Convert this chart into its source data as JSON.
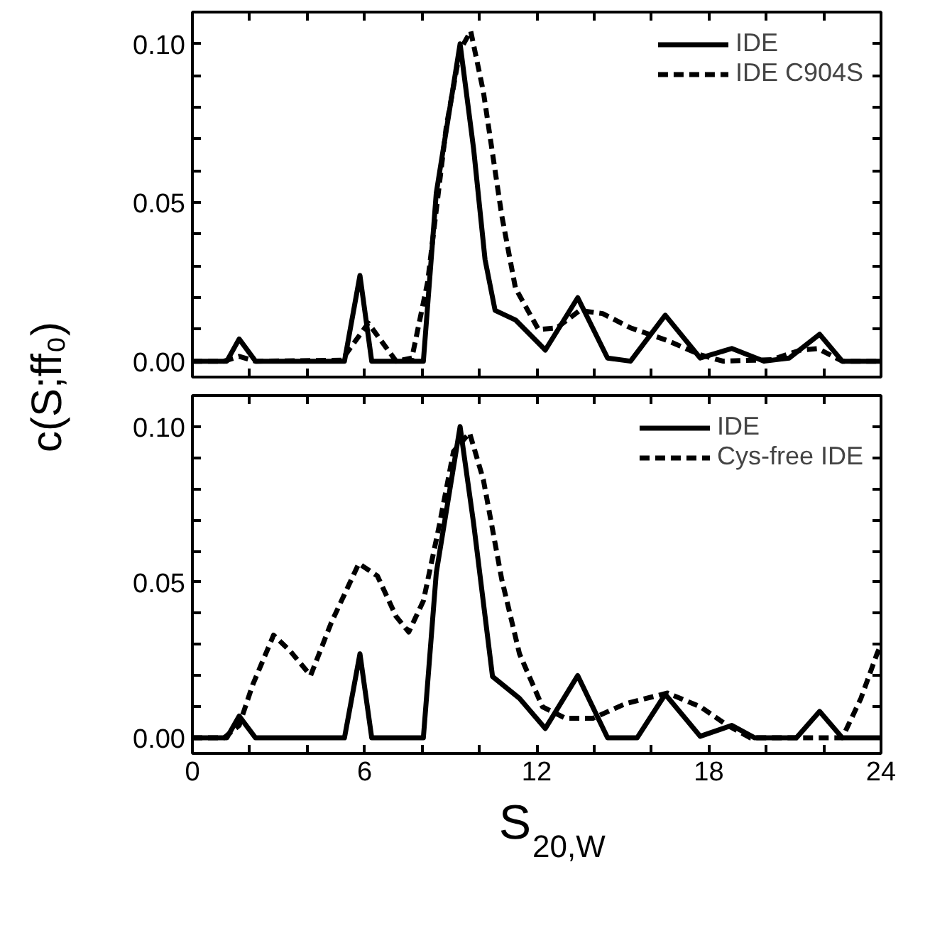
{
  "chart_data": [
    {
      "type": "line",
      "ylabel": "c(S;ff₀)",
      "xlim": [
        0,
        24
      ],
      "ylim": [
        -0.005,
        0.11
      ],
      "xticks": [
        0,
        {
          "value": 2,
          "label": null
        },
        {
          "value": 4,
          "label": null
        },
        6,
        {
          "value": 8,
          "label": null
        },
        {
          "value": 10,
          "label": null
        },
        12,
        {
          "value": 14,
          "label": null
        },
        {
          "value": 16,
          "label": null
        },
        18,
        {
          "value": 20,
          "label": null
        },
        {
          "value": 22,
          "label": null
        },
        24
      ],
      "yticks": [
        {
          "value": 0,
          "label": "0.00"
        },
        {
          "value": 0.01,
          "label": null
        },
        {
          "value": 0.02,
          "label": null
        },
        {
          "value": 0.03,
          "label": null
        },
        {
          "value": 0.04,
          "label": null
        },
        {
          "value": 0.05,
          "label": "0.05"
        },
        {
          "value": 0.06,
          "label": null
        },
        {
          "value": 0.07,
          "label": null
        },
        {
          "value": 0.08,
          "label": null
        },
        {
          "value": 0.09,
          "label": null
        },
        {
          "value": 0.1,
          "label": "0.10"
        }
      ],
      "tick_labels": "y",
      "legend": "top right",
      "grid": false,
      "series": [
        {
          "name": "IDE",
          "color": "#000000",
          "line_style": "solid",
          "x": [
            0,
            1.2,
            1.63,
            2.2,
            5.3,
            5.84,
            6.25,
            8.05,
            8.5,
            9.33,
            9.8,
            10.2,
            10.55,
            11.26,
            12.3,
            13.43,
            14.47,
            15.27,
            16.48,
            17.7,
            18.8,
            19.93,
            20.8,
            21.86,
            22.65,
            24
          ],
          "values": [
            0,
            0,
            0.007,
            0,
            0,
            0.027,
            0,
            0,
            0.053,
            0.1,
            0.067,
            0.032,
            0.016,
            0.013,
            0.0035,
            0.02,
            0.001,
            0,
            0.0145,
            0.001,
            0.004,
            0,
            0.001,
            0.0085,
            0,
            0
          ]
        },
        {
          "name": "IDE C904S",
          "color": "#000000",
          "line_style": "dashed",
          "x": [
            0,
            1.1,
            1.63,
            2.2,
            5.2,
            6.13,
            7.1,
            7.65,
            8.2,
            8.85,
            9.33,
            9.7,
            10.14,
            10.78,
            11.26,
            12.06,
            12.7,
            13.5,
            14.3,
            15.27,
            16.56,
            17.7,
            18.5,
            20.2,
            21.2,
            21.8,
            22.65,
            24
          ],
          "values": [
            0,
            0,
            0.0015,
            0,
            0.0003,
            0.012,
            0,
            0.001,
            0.025,
            0.074,
            0.098,
            0.104,
            0.085,
            0.046,
            0.023,
            0.01,
            0.0105,
            0.016,
            0.015,
            0.0105,
            0.0065,
            0.002,
            0,
            0.0005,
            0.0035,
            0.004,
            0,
            0
          ]
        }
      ]
    },
    {
      "type": "line",
      "xlabel": "S$_{20,W}$",
      "xlim": [
        0,
        24
      ],
      "ylim": [
        -0.005,
        0.11
      ],
      "xticks": [
        0,
        {
          "value": 2,
          "label": null
        },
        {
          "value": 4,
          "label": null
        },
        6,
        {
          "value": 8,
          "label": null
        },
        {
          "value": 10,
          "label": null
        },
        12,
        {
          "value": 14,
          "label": null
        },
        {
          "value": 16,
          "label": null
        },
        18,
        {
          "value": 20,
          "label": null
        },
        {
          "value": 22,
          "label": null
        },
        24
      ],
      "yticks": [
        {
          "value": 0,
          "label": "0.00"
        },
        {
          "value": 0.01,
          "label": null
        },
        {
          "value": 0.02,
          "label": null
        },
        {
          "value": 0.03,
          "label": null
        },
        {
          "value": 0.04,
          "label": null
        },
        {
          "value": 0.05,
          "label": "0.05"
        },
        {
          "value": 0.06,
          "label": null
        },
        {
          "value": 0.07,
          "label": null
        },
        {
          "value": 0.08,
          "label": null
        },
        {
          "value": 0.09,
          "label": null
        },
        {
          "value": 0.1,
          "label": "0.10"
        }
      ],
      "legend": "top right",
      "grid": false,
      "series": [
        {
          "name": "IDE",
          "color": "#000000",
          "line_style": "solid",
          "x": [
            0,
            1.2,
            1.63,
            2.2,
            5.3,
            5.84,
            6.25,
            8.05,
            8.5,
            9.33,
            9.8,
            10.46,
            11.4,
            12.3,
            13.43,
            14.47,
            15.5,
            16.48,
            17.7,
            18.8,
            19.6,
            21.05,
            21.86,
            22.65,
            24
          ],
          "values": [
            0,
            0,
            0.007,
            0,
            0,
            0.027,
            0,
            0,
            0.053,
            0.1,
            0.069,
            0.0197,
            0.0127,
            0.003,
            0.02,
            0,
            0,
            0.014,
            0.0005,
            0.004,
            0,
            0,
            0.0085,
            0,
            0
          ]
        },
        {
          "name": "Cys-free IDE",
          "color": "#000000",
          "line_style": "dashed",
          "x": [
            0,
            1.1,
            1.63,
            2.1,
            2.83,
            3.4,
            4.12,
            4.84,
            5.8,
            6.45,
            7.1,
            7.54,
            8.05,
            8.6,
            9.1,
            9.66,
            10.14,
            10.78,
            11.4,
            12.2,
            13.0,
            13.96,
            15.1,
            16.56,
            17.7,
            18.65,
            19.45,
            22.65,
            23.3,
            23.86,
            24
          ],
          "values": [
            0,
            0,
            0.004,
            0.017,
            0.033,
            0.028,
            0.02,
            0.037,
            0.056,
            0.052,
            0.039,
            0.034,
            0.044,
            0.068,
            0.092,
            0.098,
            0.083,
            0.051,
            0.027,
            0.01,
            0.0063,
            0.0063,
            0.011,
            0.0144,
            0.01,
            0.004,
            0,
            0,
            0.0127,
            0.027,
            0.03
          ]
        }
      ]
    }
  ]
}
